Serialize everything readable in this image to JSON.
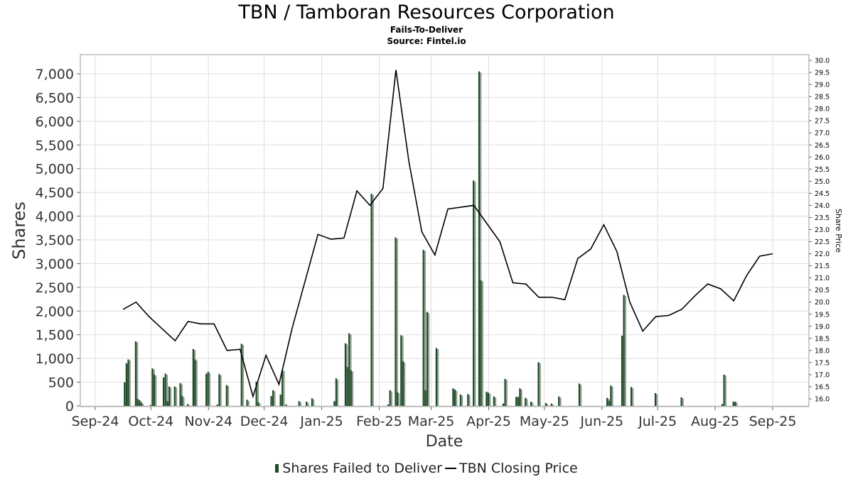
{
  "title": "TBN / Tamboran Resources Corporation",
  "subtitle": "Fails-To-Deliver",
  "source": "Source: Fintel.io",
  "colors": {
    "bar_dark": "#1d4a26",
    "bar_light": "#8a9a8c",
    "line": "#000000",
    "grid": "#dddddd"
  },
  "chart_data": {
    "type": "bar+line",
    "xlabel": "Date",
    "ylabel": "Shares",
    "y2label": "Share Price",
    "ylim": [
      0,
      7200
    ],
    "y2lim": [
      15.8,
      30.2
    ],
    "grid": true,
    "legend_position": "bottom",
    "x_ticks": [
      "Sep-24",
      "Oct-24",
      "Nov-24",
      "Dec-24",
      "Jan-25",
      "Feb-25",
      "Mar-25",
      "Apr-25",
      "May-25",
      "Jun-25",
      "Jul-25",
      "Aug-25",
      "Sep-25"
    ],
    "y_ticks": [
      "0",
      "500",
      "1,000",
      "1,500",
      "2,000",
      "2,500",
      "3,000",
      "3,500",
      "4,000",
      "4,500",
      "5,000",
      "5,500",
      "6,000",
      "6,500",
      "7,000"
    ],
    "y2_ticks": [
      "16.0",
      "16.5",
      "17.0",
      "17.5",
      "18.0",
      "18.5",
      "19.0",
      "19.5",
      "20.0",
      "20.5",
      "21.0",
      "21.5",
      "22.0",
      "22.5",
      "23.0",
      "23.5",
      "24.0",
      "24.5",
      "25.0",
      "25.5",
      "26.0",
      "26.5",
      "27.0",
      "27.5",
      "28.0",
      "28.5",
      "29.0",
      "29.5",
      "30.0"
    ],
    "series": [
      {
        "name": "Shares Failed to Deliver",
        "kind": "bar",
        "points": [
          {
            "x": "2024-09-17",
            "y": 500
          },
          {
            "x": "2024-09-18",
            "y": 900
          },
          {
            "x": "2024-09-19",
            "y": 980
          },
          {
            "x": "2024-09-23",
            "y": 1360
          },
          {
            "x": "2024-09-24",
            "y": 150
          },
          {
            "x": "2024-09-25",
            "y": 120
          },
          {
            "x": "2024-09-26",
            "y": 70
          },
          {
            "x": "2024-10-01",
            "y": 20
          },
          {
            "x": "2024-10-02",
            "y": 790
          },
          {
            "x": "2024-10-03",
            "y": 660
          },
          {
            "x": "2024-10-08",
            "y": 600
          },
          {
            "x": "2024-10-09",
            "y": 680
          },
          {
            "x": "2024-10-10",
            "y": 100
          },
          {
            "x": "2024-10-11",
            "y": 410
          },
          {
            "x": "2024-10-14",
            "y": 410
          },
          {
            "x": "2024-10-17",
            "y": 480
          },
          {
            "x": "2024-10-18",
            "y": 210
          },
          {
            "x": "2024-10-21",
            "y": 40
          },
          {
            "x": "2024-10-24",
            "y": 1200
          },
          {
            "x": "2024-10-25",
            "y": 980
          },
          {
            "x": "2024-10-31",
            "y": 680
          },
          {
            "x": "2024-11-01",
            "y": 720
          },
          {
            "x": "2024-11-06",
            "y": 30
          },
          {
            "x": "2024-11-07",
            "y": 670
          },
          {
            "x": "2024-11-11",
            "y": 440
          },
          {
            "x": "2024-11-19",
            "y": 1310
          },
          {
            "x": "2024-11-22",
            "y": 130
          },
          {
            "x": "2024-11-27",
            "y": 510
          },
          {
            "x": "2024-11-28",
            "y": 80
          },
          {
            "x": "2024-12-05",
            "y": 210
          },
          {
            "x": "2024-12-06",
            "y": 330
          },
          {
            "x": "2024-12-10",
            "y": 240
          },
          {
            "x": "2024-12-11",
            "y": 760
          },
          {
            "x": "2024-12-13",
            "y": 30
          },
          {
            "x": "2024-12-20",
            "y": 100
          },
          {
            "x": "2024-12-24",
            "y": 90
          },
          {
            "x": "2024-12-27",
            "y": 160
          },
          {
            "x": "2025-01-08",
            "y": 100
          },
          {
            "x": "2025-01-09",
            "y": 580
          },
          {
            "x": "2025-01-14",
            "y": 1320
          },
          {
            "x": "2025-01-15",
            "y": 820
          },
          {
            "x": "2025-01-16",
            "y": 1530
          },
          {
            "x": "2025-01-17",
            "y": 750
          },
          {
            "x": "2025-01-28",
            "y": 4470
          },
          {
            "x": "2025-02-06",
            "y": 30
          },
          {
            "x": "2025-02-07",
            "y": 330
          },
          {
            "x": "2025-02-10",
            "y": 3550
          },
          {
            "x": "2025-02-11",
            "y": 290
          },
          {
            "x": "2025-02-13",
            "y": 1490
          },
          {
            "x": "2025-02-14",
            "y": 940
          },
          {
            "x": "2025-02-25",
            "y": 3290
          },
          {
            "x": "2025-02-26",
            "y": 330
          },
          {
            "x": "2025-02-27",
            "y": 1980
          },
          {
            "x": "2025-03-04",
            "y": 1220
          },
          {
            "x": "2025-03-13",
            "y": 370
          },
          {
            "x": "2025-03-14",
            "y": 340
          },
          {
            "x": "2025-03-17",
            "y": 240
          },
          {
            "x": "2025-03-21",
            "y": 250
          },
          {
            "x": "2025-03-24",
            "y": 4750
          },
          {
            "x": "2025-03-27",
            "y": 7050
          },
          {
            "x": "2025-03-28",
            "y": 2650
          },
          {
            "x": "2025-03-31",
            "y": 300
          },
          {
            "x": "2025-04-01",
            "y": 280
          },
          {
            "x": "2025-04-04",
            "y": 200
          },
          {
            "x": "2025-04-09",
            "y": 50
          },
          {
            "x": "2025-04-10",
            "y": 570
          },
          {
            "x": "2025-04-16",
            "y": 190
          },
          {
            "x": "2025-04-17",
            "y": 190
          },
          {
            "x": "2025-04-18",
            "y": 370
          },
          {
            "x": "2025-04-21",
            "y": 170
          },
          {
            "x": "2025-04-24",
            "y": 90
          },
          {
            "x": "2025-04-28",
            "y": 920
          },
          {
            "x": "2025-05-02",
            "y": 60
          },
          {
            "x": "2025-05-05",
            "y": 50
          },
          {
            "x": "2025-05-09",
            "y": 200
          },
          {
            "x": "2025-05-20",
            "y": 470
          },
          {
            "x": "2025-06-04",
            "y": 170
          },
          {
            "x": "2025-06-05",
            "y": 110
          },
          {
            "x": "2025-06-06",
            "y": 430
          },
          {
            "x": "2025-06-12",
            "y": 1480
          },
          {
            "x": "2025-06-13",
            "y": 2340
          },
          {
            "x": "2025-06-17",
            "y": 400
          },
          {
            "x": "2025-06-30",
            "y": 270
          },
          {
            "x": "2025-07-14",
            "y": 180
          },
          {
            "x": "2025-08-05",
            "y": 40
          },
          {
            "x": "2025-08-06",
            "y": 660
          },
          {
            "x": "2025-08-11",
            "y": 90
          },
          {
            "x": "2025-08-12",
            "y": 90
          }
        ]
      },
      {
        "name": "TBN Closing Price",
        "kind": "line",
        "points": [
          {
            "x": "2024-09-16",
            "y": 19.7
          },
          {
            "x": "2024-09-23",
            "y": 20.0
          },
          {
            "x": "2024-09-30",
            "y": 19.4
          },
          {
            "x": "2024-10-07",
            "y": 18.9
          },
          {
            "x": "2024-10-14",
            "y": 18.4
          },
          {
            "x": "2024-10-21",
            "y": 19.2
          },
          {
            "x": "2024-10-28",
            "y": 19.1
          },
          {
            "x": "2024-11-04",
            "y": 19.1
          },
          {
            "x": "2024-11-11",
            "y": 18.0
          },
          {
            "x": "2024-11-18",
            "y": 18.05
          },
          {
            "x": "2024-11-25",
            "y": 16.1
          },
          {
            "x": "2024-12-02",
            "y": 17.8
          },
          {
            "x": "2024-12-09",
            "y": 16.6
          },
          {
            "x": "2024-12-16",
            "y": 18.9
          },
          {
            "x": "2024-12-30",
            "y": 22.8
          },
          {
            "x": "2025-01-06",
            "y": 22.6
          },
          {
            "x": "2025-01-13",
            "y": 22.65
          },
          {
            "x": "2025-01-20",
            "y": 24.6
          },
          {
            "x": "2025-01-27",
            "y": 24.0
          },
          {
            "x": "2025-02-03",
            "y": 24.7
          },
          {
            "x": "2025-02-10",
            "y": 29.6
          },
          {
            "x": "2025-02-17",
            "y": 25.8
          },
          {
            "x": "2025-02-24",
            "y": 22.9
          },
          {
            "x": "2025-03-03",
            "y": 21.95
          },
          {
            "x": "2025-03-10",
            "y": 23.85
          },
          {
            "x": "2025-03-24",
            "y": 24.0
          },
          {
            "x": "2025-04-07",
            "y": 22.5
          },
          {
            "x": "2025-04-14",
            "y": 20.8
          },
          {
            "x": "2025-04-21",
            "y": 20.75
          },
          {
            "x": "2025-04-28",
            "y": 20.2
          },
          {
            "x": "2025-05-05",
            "y": 20.2
          },
          {
            "x": "2025-05-12",
            "y": 20.1
          },
          {
            "x": "2025-05-19",
            "y": 21.8
          },
          {
            "x": "2025-05-26",
            "y": 22.2
          },
          {
            "x": "2025-06-02",
            "y": 23.2
          },
          {
            "x": "2025-06-09",
            "y": 22.1
          },
          {
            "x": "2025-06-16",
            "y": 20.0
          },
          {
            "x": "2025-06-23",
            "y": 18.8
          },
          {
            "x": "2025-06-30",
            "y": 19.4
          },
          {
            "x": "2025-07-07",
            "y": 19.45
          },
          {
            "x": "2025-07-14",
            "y": 19.7
          },
          {
            "x": "2025-07-21",
            "y": 20.25
          },
          {
            "x": "2025-07-28",
            "y": 20.75
          },
          {
            "x": "2025-08-04",
            "y": 20.55
          },
          {
            "x": "2025-08-11",
            "y": 20.05
          },
          {
            "x": "2025-08-18",
            "y": 21.1
          },
          {
            "x": "2025-08-25",
            "y": 21.9
          },
          {
            "x": "2025-09-01",
            "y": 22.0
          }
        ]
      }
    ]
  }
}
